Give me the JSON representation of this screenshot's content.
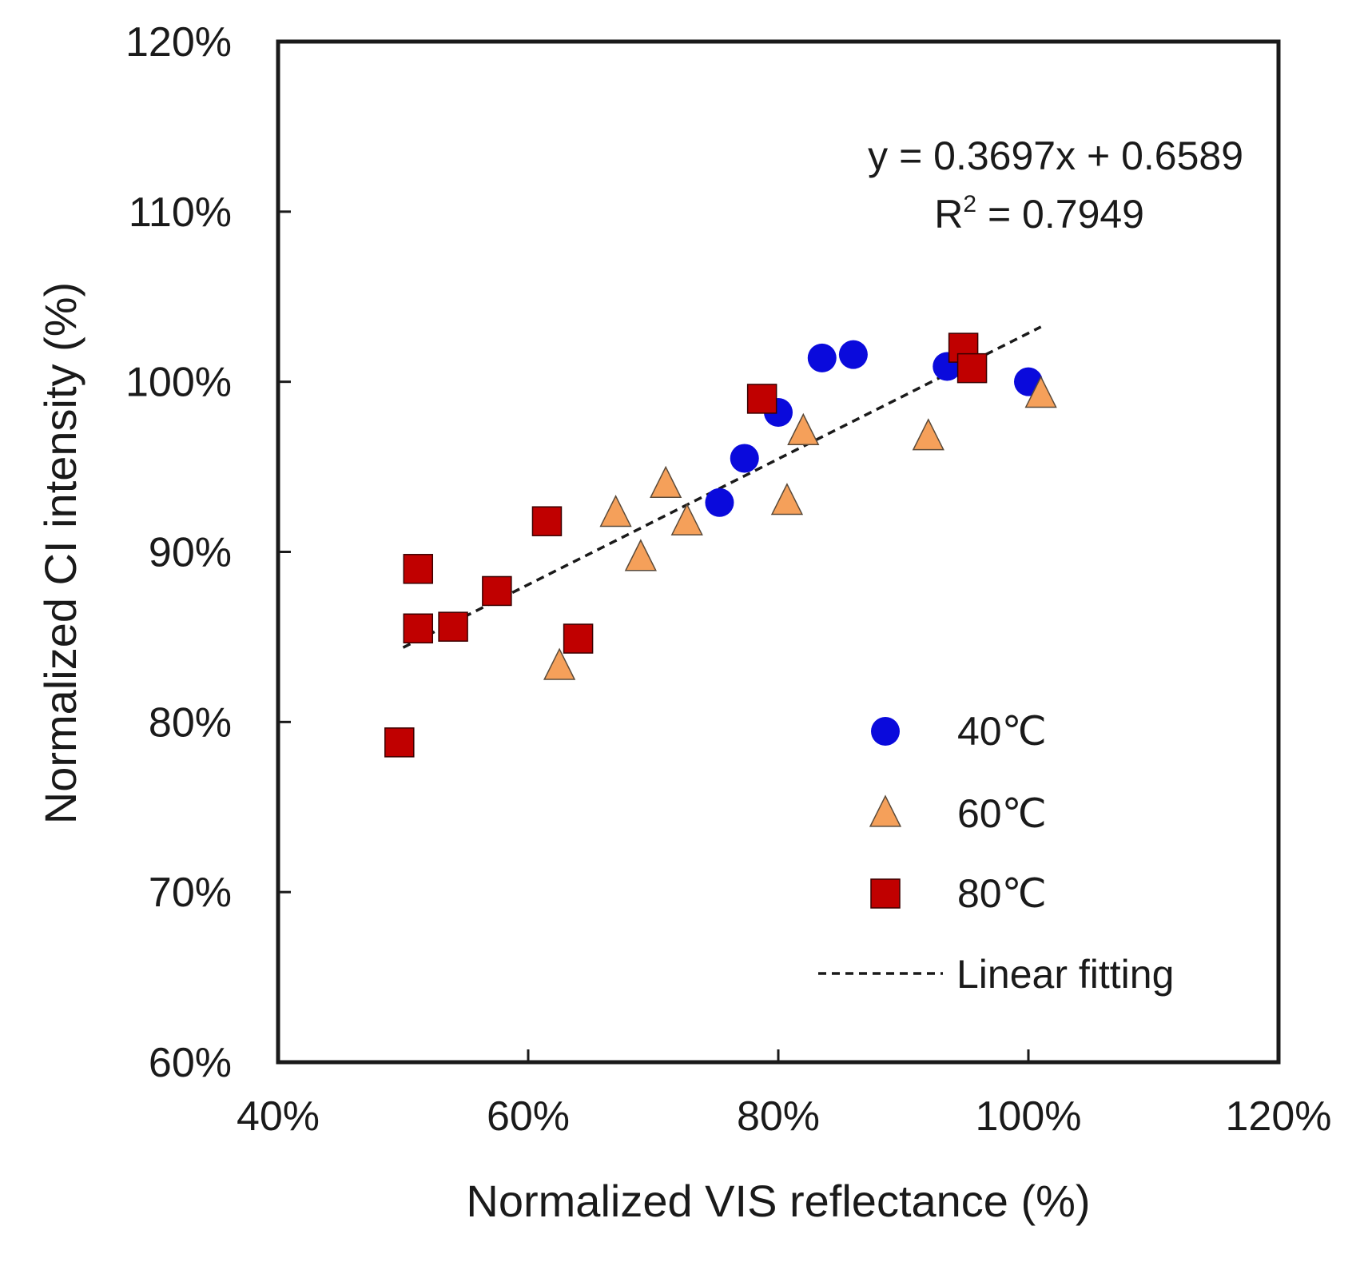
{
  "chart_data": {
    "type": "scatter",
    "title": "",
    "xlabel": "Normalized VIS reflectance (%)",
    "ylabel": "Normalized CI intensity (%)",
    "xlim": [
      0.4,
      1.2
    ],
    "ylim": [
      0.6,
      1.2
    ],
    "x_ticks": [
      0.4,
      0.6,
      0.8,
      1.0,
      1.2
    ],
    "x_tick_labels": [
      "40%",
      "60%",
      "80%",
      "100%",
      "120%"
    ],
    "y_ticks": [
      0.6,
      0.7,
      0.8,
      0.9,
      1.0,
      1.1,
      1.2
    ],
    "y_tick_labels": [
      "60%",
      "70%",
      "80%",
      "90%",
      "100%",
      "110%",
      "120%"
    ],
    "grid": false,
    "legend_position": "bottom-right",
    "series": [
      {
        "name": "40℃",
        "marker": "circle",
        "color": "#0a0adc",
        "points": [
          [
            0.753,
            0.929
          ],
          [
            0.773,
            0.955
          ],
          [
            0.8,
            0.982
          ],
          [
            0.835,
            1.014
          ],
          [
            0.86,
            1.016
          ],
          [
            0.935,
            1.009
          ],
          [
            1.0,
            1.0
          ]
        ]
      },
      {
        "name": "60℃",
        "marker": "triangle",
        "color": "#f5a05a",
        "points": [
          [
            0.625,
            0.833
          ],
          [
            0.67,
            0.923
          ],
          [
            0.69,
            0.897
          ],
          [
            0.71,
            0.94
          ],
          [
            0.727,
            0.918
          ],
          [
            0.807,
            0.93
          ],
          [
            0.82,
            0.971
          ],
          [
            0.92,
            0.968
          ],
          [
            1.01,
            0.993
          ]
        ]
      },
      {
        "name": "80℃",
        "marker": "square",
        "color": "#c00000",
        "points": [
          [
            0.497,
            0.788
          ],
          [
            0.512,
            0.855
          ],
          [
            0.512,
            0.89
          ],
          [
            0.54,
            0.856
          ],
          [
            0.575,
            0.877
          ],
          [
            0.615,
            0.918
          ],
          [
            0.64,
            0.849
          ],
          [
            0.787,
            0.99
          ],
          [
            0.948,
            1.02
          ],
          [
            0.955,
            1.008
          ]
        ]
      }
    ],
    "fit": {
      "name": "Linear fitting",
      "slope": 0.3697,
      "intercept": 0.6589,
      "x_range": [
        0.5,
        1.01
      ],
      "equation": "y = 0.3697x + 0.6589",
      "r2_prefix": "R",
      "r2_sup": "2",
      "r2_value": " = 0.7949"
    }
  }
}
